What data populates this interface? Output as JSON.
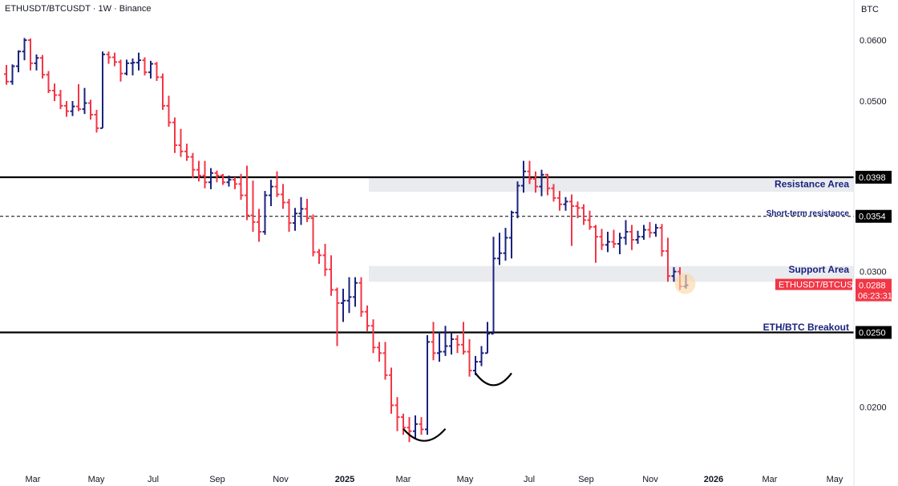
{
  "header": {
    "symbol_title": "ETHUSDT/BTCUSDT · 1W · Binance",
    "currency": "BTC"
  },
  "colors": {
    "up": "#1a237e",
    "down": "#f23645",
    "level_line": "#000000",
    "zone_fill": "#e9ebee",
    "annotation_text": "#1a237e",
    "price_badge": "#f23645",
    "level_badge": "#000000"
  },
  "chart_data": {
    "type": "ohlc",
    "y_scale": "log",
    "ylim": [
      0.0168,
      0.0645
    ],
    "yticks": [
      "0.0600",
      "0.0500",
      "0.0300",
      "0.0200"
    ],
    "x_ticks": [
      {
        "label": "Mar",
        "bold": false
      },
      {
        "label": "May",
        "bold": false
      },
      {
        "label": "Jul",
        "bold": false
      },
      {
        "label": "Sep",
        "bold": false
      },
      {
        "label": "Nov",
        "bold": false
      },
      {
        "label": "2025",
        "bold": true
      },
      {
        "label": "Mar",
        "bold": false
      },
      {
        "label": "May",
        "bold": false
      },
      {
        "label": "Jul",
        "bold": false
      },
      {
        "label": "Sep",
        "bold": false
      },
      {
        "label": "Nov",
        "bold": false
      },
      {
        "label": "2026",
        "bold": true
      },
      {
        "label": "Mar",
        "bold": false
      },
      {
        "label": "May",
        "bold": false
      }
    ],
    "bars": [
      [
        0.0542,
        0.0557,
        0.0525,
        0.053
      ],
      [
        0.053,
        0.0558,
        0.0525,
        0.0555
      ],
      [
        0.0555,
        0.0582,
        0.0545,
        0.058
      ],
      [
        0.058,
        0.0604,
        0.0565,
        0.06
      ],
      [
        0.06,
        0.0603,
        0.0548,
        0.056
      ],
      [
        0.056,
        0.0575,
        0.0548,
        0.0569
      ],
      [
        0.0569,
        0.0574,
        0.0535,
        0.0541
      ],
      [
        0.0541,
        0.0547,
        0.0512,
        0.0516
      ],
      [
        0.0516,
        0.0527,
        0.05,
        0.0509
      ],
      [
        0.0509,
        0.0517,
        0.0488,
        0.0493
      ],
      [
        0.0493,
        0.05,
        0.0477,
        0.0485
      ],
      [
        0.0485,
        0.05,
        0.0478,
        0.0492
      ],
      [
        0.0492,
        0.0526,
        0.0485,
        0.0488
      ],
      [
        0.0488,
        0.052,
        0.0481,
        0.0497
      ],
      [
        0.0497,
        0.0502,
        0.0473,
        0.048
      ],
      [
        0.048,
        0.0487,
        0.0455,
        0.0461
      ],
      [
        0.0461,
        0.058,
        0.0461,
        0.0575
      ],
      [
        0.0575,
        0.058,
        0.0559,
        0.057
      ],
      [
        0.057,
        0.0578,
        0.0555,
        0.0562
      ],
      [
        0.0562,
        0.0566,
        0.053,
        0.0543
      ],
      [
        0.0543,
        0.0566,
        0.054,
        0.056
      ],
      [
        0.056,
        0.0568,
        0.054,
        0.0561
      ],
      [
        0.0561,
        0.0578,
        0.0548,
        0.0565
      ],
      [
        0.0565,
        0.057,
        0.054,
        0.0545
      ],
      [
        0.0545,
        0.0564,
        0.0535,
        0.0559
      ],
      [
        0.0559,
        0.0562,
        0.0531,
        0.0537
      ],
      [
        0.0537,
        0.0543,
        0.0487,
        0.0493
      ],
      [
        0.0493,
        0.0508,
        0.0463,
        0.0469
      ],
      [
        0.0469,
        0.0476,
        0.0428,
        0.0438
      ],
      [
        0.0438,
        0.046,
        0.0423,
        0.043
      ],
      [
        0.043,
        0.044,
        0.0418,
        0.0423
      ],
      [
        0.0423,
        0.0428,
        0.0397,
        0.0407
      ],
      [
        0.0407,
        0.0418,
        0.0393,
        0.04
      ],
      [
        0.04,
        0.0418,
        0.0385,
        0.0392
      ],
      [
        0.0392,
        0.0409,
        0.0384,
        0.0403
      ],
      [
        0.0403,
        0.0406,
        0.0392,
        0.04
      ],
      [
        0.04,
        0.0402,
        0.0389,
        0.0392
      ],
      [
        0.0392,
        0.04,
        0.0387,
        0.0395
      ],
      [
        0.0395,
        0.0398,
        0.0384,
        0.039
      ],
      [
        0.039,
        0.0402,
        0.0372,
        0.0377
      ],
      [
        0.0377,
        0.0412,
        0.035,
        0.0355
      ],
      [
        0.0355,
        0.0394,
        0.0338,
        0.0348
      ],
      [
        0.0348,
        0.0362,
        0.0328,
        0.0338
      ],
      [
        0.0338,
        0.0382,
        0.0335,
        0.0377
      ],
      [
        0.0377,
        0.0395,
        0.0365,
        0.0387
      ],
      [
        0.0387,
        0.0405,
        0.0375,
        0.0378
      ],
      [
        0.0378,
        0.039,
        0.0362,
        0.0369
      ],
      [
        0.0369,
        0.0373,
        0.0338,
        0.0347
      ],
      [
        0.0347,
        0.0363,
        0.0339,
        0.0357
      ],
      [
        0.0357,
        0.0375,
        0.0345,
        0.0362
      ],
      [
        0.0362,
        0.0373,
        0.0348,
        0.0352
      ],
      [
        0.0352,
        0.0356,
        0.0314,
        0.0318
      ],
      [
        0.0318,
        0.0321,
        0.0307,
        0.0315
      ],
      [
        0.0315,
        0.0326,
        0.0296,
        0.0302
      ],
      [
        0.0302,
        0.0315,
        0.0279,
        0.0284
      ],
      [
        0.0284,
        0.0286,
        0.024,
        0.0273
      ],
      [
        0.0273,
        0.0285,
        0.0258,
        0.0275
      ],
      [
        0.0275,
        0.0295,
        0.0265,
        0.0278
      ],
      [
        0.0278,
        0.0295,
        0.027,
        0.029
      ],
      [
        0.029,
        0.0295,
        0.0262,
        0.0266
      ],
      [
        0.0266,
        0.0271,
        0.0251,
        0.0255
      ],
      [
        0.0255,
        0.026,
        0.0235,
        0.0239
      ],
      [
        0.0239,
        0.0243,
        0.0229,
        0.0235
      ],
      [
        0.0235,
        0.0243,
        0.0217,
        0.022
      ],
      [
        0.022,
        0.0225,
        0.0196,
        0.0201
      ],
      [
        0.0201,
        0.0206,
        0.0186,
        0.0194
      ],
      [
        0.0194,
        0.0196,
        0.0184,
        0.0188
      ],
      [
        0.0188,
        0.0194,
        0.018,
        0.0186
      ],
      [
        0.0186,
        0.0195,
        0.0182,
        0.019
      ],
      [
        0.019,
        0.0194,
        0.0184,
        0.0187
      ],
      [
        0.0187,
        0.0248,
        0.0184,
        0.0243
      ],
      [
        0.0243,
        0.0258,
        0.023,
        0.0235
      ],
      [
        0.0235,
        0.025,
        0.0229,
        0.0236
      ],
      [
        0.0236,
        0.0255,
        0.0233,
        0.024
      ],
      [
        0.024,
        0.025,
        0.0234,
        0.0245
      ],
      [
        0.0245,
        0.0248,
        0.0235,
        0.0241
      ],
      [
        0.0241,
        0.0258,
        0.0234,
        0.0236
      ],
      [
        0.0236,
        0.0245,
        0.0219,
        0.0223
      ],
      [
        0.0223,
        0.0233,
        0.022,
        0.0229
      ],
      [
        0.0229,
        0.024,
        0.0226,
        0.0235
      ],
      [
        0.0235,
        0.0258,
        0.0235,
        0.0249
      ],
      [
        0.0249,
        0.0333,
        0.0249,
        0.0312
      ],
      [
        0.0312,
        0.0337,
        0.0306,
        0.0317
      ],
      [
        0.0317,
        0.0342,
        0.031,
        0.0332
      ],
      [
        0.0332,
        0.036,
        0.0312,
        0.0358
      ],
      [
        0.0358,
        0.0393,
        0.0352,
        0.0388
      ],
      [
        0.0388,
        0.0418,
        0.038,
        0.0405
      ],
      [
        0.0405,
        0.0418,
        0.039,
        0.0396
      ],
      [
        0.0396,
        0.0405,
        0.038,
        0.0387
      ],
      [
        0.0387,
        0.0407,
        0.0376,
        0.0401
      ],
      [
        0.0401,
        0.0402,
        0.0377,
        0.0385
      ],
      [
        0.0385,
        0.039,
        0.037,
        0.0374
      ],
      [
        0.0374,
        0.0382,
        0.036,
        0.0367
      ],
      [
        0.0367,
        0.0375,
        0.036,
        0.037
      ],
      [
        0.037,
        0.0378,
        0.0324,
        0.0365
      ],
      [
        0.0365,
        0.037,
        0.0352,
        0.0363
      ],
      [
        0.0363,
        0.0367,
        0.0345,
        0.035
      ],
      [
        0.035,
        0.036,
        0.034,
        0.0343
      ],
      [
        0.0343,
        0.0345,
        0.0308,
        0.0333
      ],
      [
        0.0333,
        0.0341,
        0.032,
        0.0325
      ],
      [
        0.0325,
        0.0338,
        0.0318,
        0.0328
      ],
      [
        0.0328,
        0.034,
        0.0322,
        0.0326
      ],
      [
        0.0326,
        0.0337,
        0.0316,
        0.0332
      ],
      [
        0.0332,
        0.035,
        0.0325,
        0.0338
      ],
      [
        0.0338,
        0.0345,
        0.032,
        0.033
      ],
      [
        0.033,
        0.0339,
        0.0326,
        0.0333
      ],
      [
        0.0333,
        0.0345,
        0.033,
        0.034
      ],
      [
        0.034,
        0.0348,
        0.0332,
        0.0337
      ],
      [
        0.0337,
        0.0346,
        0.0333,
        0.0342
      ],
      [
        0.0342,
        0.0346,
        0.0314,
        0.0319
      ],
      [
        0.0319,
        0.0332,
        0.0291,
        0.0296
      ],
      [
        0.0296,
        0.0304,
        0.0291,
        0.03
      ],
      [
        0.03,
        0.0304,
        0.0284,
        0.0287
      ],
      [
        0.0287,
        0.0297,
        0.0285,
        0.0288
      ]
    ],
    "levels": [
      {
        "name": "resistance",
        "value": 0.0398,
        "label": "0.0398",
        "style": "solid"
      },
      {
        "name": "short-term",
        "value": 0.0354,
        "label": "0.0354",
        "style": "dashed"
      },
      {
        "name": "breakout",
        "value": 0.025,
        "label": "0.0250",
        "style": "solid"
      }
    ],
    "zones": [
      {
        "name": "resistance-zone",
        "from": 0.0381,
        "to": 0.0398
      },
      {
        "name": "support-zone",
        "from": 0.0291,
        "to": 0.0305
      }
    ],
    "annotations": [
      {
        "name": "resistance-area-label",
        "text": "Resistance Area",
        "y": 0.039,
        "size": 12
      },
      {
        "name": "short-term-resistance-label",
        "text": "Short-term resistance",
        "y": 0.0358,
        "size": 10
      },
      {
        "name": "support-area-label",
        "text": "Support Area",
        "y": 0.0302,
        "size": 12
      },
      {
        "name": "eth-btc-breakout-label",
        "text": "ETH/BTC Breakout",
        "y": 0.0254,
        "size": 12
      }
    ],
    "current_price": {
      "value": 0.0288,
      "label": "0.0288",
      "symbol": "ETHUSDT/BTCUSDT",
      "countdown": "06:23:31"
    },
    "bottom_pattern": [
      {
        "name": "bottom-curve-1",
        "bar_from": 66,
        "bar_to": 73,
        "depth": 0.0182
      },
      {
        "name": "bottom-curve-2",
        "bar_from": 78,
        "bar_to": 84,
        "depth": 0.0215
      }
    ]
  }
}
